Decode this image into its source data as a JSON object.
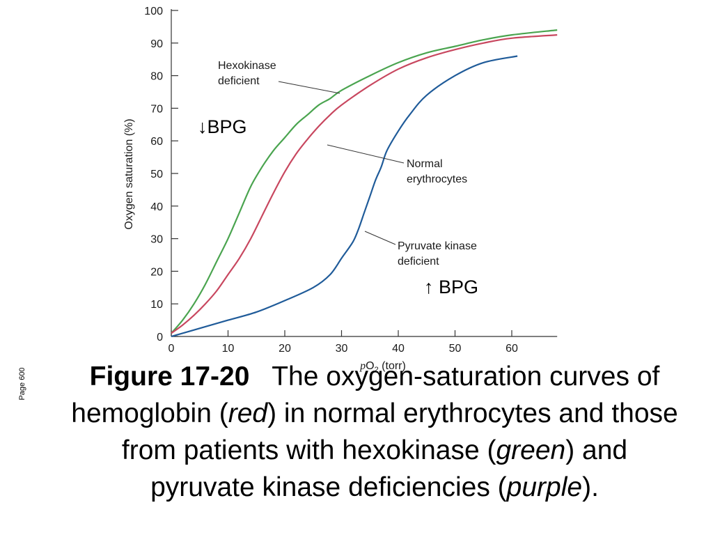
{
  "page_note": "Page 600",
  "caption": {
    "figure_label": "Figure 17-20",
    "text_1": "The oxygen-saturation curves of hemoglobin (",
    "red_word": "red",
    "text_2": ") in normal erythrocytes and those from patients with hexokinase (",
    "green_word": "green",
    "text_3": ") and pyruvate kinase deficiencies (",
    "purple_word": "purple",
    "text_4": ")."
  },
  "annotations": {
    "bpg_down": "↓BPG",
    "bpg_up": "↑ BPG"
  },
  "chart_data": {
    "type": "line",
    "xlabel_prefix": "p",
    "xlabel_species": "O",
    "xlabel_subscript": "2",
    "xlabel_unit": " (torr)",
    "ylabel": "Oxygen saturation (%)",
    "xlim": [
      0,
      68
    ],
    "ylim": [
      0,
      100
    ],
    "xticks": [
      0,
      10,
      20,
      30,
      40,
      50,
      60
    ],
    "yticks": [
      0,
      10,
      20,
      30,
      40,
      50,
      60,
      70,
      80,
      90,
      100
    ],
    "series": [
      {
        "name": "Hexokinase deficient",
        "color": "#4aa44f",
        "x": [
          0,
          2,
          4,
          6,
          8,
          10,
          12,
          14,
          16,
          18,
          20,
          22,
          24,
          26,
          28,
          30,
          35,
          40,
          45,
          50,
          55,
          60,
          68
        ],
        "y": [
          1,
          5,
          10,
          16,
          23,
          30,
          38,
          46,
          52,
          57,
          61,
          65,
          68,
          71,
          73,
          75.5,
          80,
          84,
          87,
          89,
          91,
          92.5,
          94
        ]
      },
      {
        "name": "Normal erythrocytes",
        "color": "#c8475f",
        "x": [
          0,
          2,
          4,
          6,
          8,
          10,
          12,
          14,
          16,
          18,
          20,
          22,
          24,
          26,
          28,
          30,
          35,
          40,
          45,
          50,
          55,
          60,
          68
        ],
        "y": [
          1,
          3.5,
          6.5,
          10,
          14,
          19,
          24,
          30,
          37,
          44,
          50.5,
          56,
          60.5,
          64.5,
          68,
          71,
          77,
          82,
          85.5,
          88,
          90,
          91.5,
          92.5
        ]
      },
      {
        "name": "Pyruvate kinase deficient",
        "color": "#1f5b99",
        "x": [
          0,
          5,
          10,
          15,
          20,
          25,
          28,
          30,
          32,
          33,
          34,
          35,
          36,
          37,
          38,
          40,
          42,
          45,
          50,
          55,
          61
        ],
        "y": [
          0,
          2.5,
          5,
          7.5,
          11,
          15,
          19,
          24,
          29,
          33,
          38,
          43,
          48,
          52,
          57,
          63,
          68,
          74,
          80,
          84,
          86
        ]
      }
    ],
    "labels": [
      {
        "series": "Hexokinase deficient",
        "lines": [
          "Hexokinase",
          "deficient"
        ]
      },
      {
        "series": "Normal erythrocytes",
        "lines": [
          "Normal",
          "erythrocytes"
        ]
      },
      {
        "series": "Pyruvate kinase deficient",
        "lines": [
          "Pyruvate kinase",
          "deficient"
        ]
      }
    ]
  }
}
